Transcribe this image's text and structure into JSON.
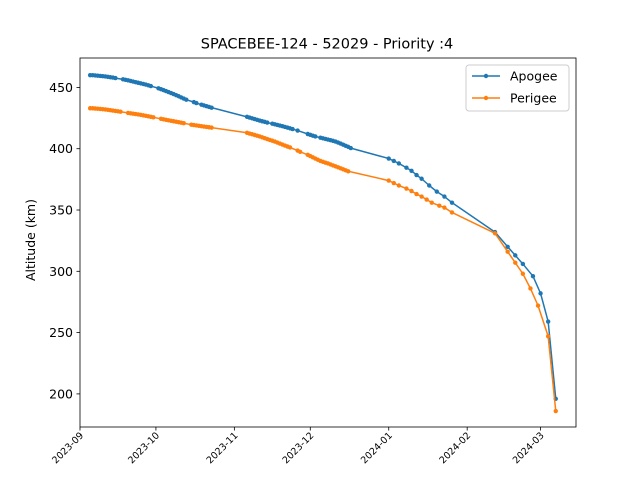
{
  "chart_data": {
    "type": "line",
    "title": "SPACEBEE-124 - 52029 - Priority :4",
    "xlabel": "",
    "ylabel": "Altitude (km)",
    "xlim": [
      "2023-09-01",
      "2024-03-15"
    ],
    "ylim": [
      173,
      474
    ],
    "x_ticks": [
      "2023-09",
      "2023-10",
      "2023-11",
      "2023-12",
      "2024-01",
      "2024-02",
      "2024-03"
    ],
    "y_ticks": [
      200,
      250,
      300,
      350,
      400,
      450
    ],
    "grid": false,
    "legend": {
      "position": "top-right"
    },
    "series": [
      {
        "name": "Apogee",
        "color": "#1f77b4",
        "marker": "circle",
        "points": [
          [
            "2023-09-05",
            460
          ],
          [
            "2023-09-06",
            460
          ],
          [
            "2023-09-07",
            459.8
          ],
          [
            "2023-09-08",
            459.6
          ],
          [
            "2023-09-09",
            459.4
          ],
          [
            "2023-09-10",
            459.2
          ],
          [
            "2023-09-11",
            459
          ],
          [
            "2023-09-12",
            458.6
          ],
          [
            "2023-09-13",
            458.3
          ],
          [
            "2023-09-14",
            458
          ],
          [
            "2023-09-15",
            457.6
          ],
          [
            "2023-09-18",
            456.6
          ],
          [
            "2023-09-19",
            456.2
          ],
          [
            "2023-09-20",
            455.8
          ],
          [
            "2023-09-21",
            455.3
          ],
          [
            "2023-09-22",
            454.8
          ],
          [
            "2023-09-23",
            454.3
          ],
          [
            "2023-09-24",
            453.8
          ],
          [
            "2023-09-25",
            453.3
          ],
          [
            "2023-09-26",
            452.8
          ],
          [
            "2023-09-27",
            452.3
          ],
          [
            "2023-09-28",
            451.7
          ],
          [
            "2023-09-29",
            451.1
          ],
          [
            "2023-10-02",
            449.3
          ],
          [
            "2023-10-03",
            448.6
          ],
          [
            "2023-10-04",
            447.8
          ],
          [
            "2023-10-05",
            447
          ],
          [
            "2023-10-06",
            446.2
          ],
          [
            "2023-10-07",
            445.4
          ],
          [
            "2023-10-08",
            444.6
          ],
          [
            "2023-10-09",
            443.7
          ],
          [
            "2023-10-10",
            442.8
          ],
          [
            "2023-10-11",
            441.8
          ],
          [
            "2023-10-12",
            440.9
          ],
          [
            "2023-10-13",
            440
          ],
          [
            "2023-10-16",
            438
          ],
          [
            "2023-10-17",
            437.2
          ],
          [
            "2023-10-19",
            435.9
          ],
          [
            "2023-10-20",
            435.3
          ],
          [
            "2023-10-21",
            434.7
          ],
          [
            "2023-10-22",
            434.1
          ],
          [
            "2023-10-23",
            433.5
          ],
          [
            "2023-11-06",
            426
          ],
          [
            "2023-11-07",
            425.4
          ],
          [
            "2023-11-08",
            424.8
          ],
          [
            "2023-11-09",
            424.2
          ],
          [
            "2023-11-10",
            423.6
          ],
          [
            "2023-11-11",
            423
          ],
          [
            "2023-11-12",
            422.4
          ],
          [
            "2023-11-13",
            421.9
          ],
          [
            "2023-11-14",
            421.3
          ],
          [
            "2023-11-16",
            420.4
          ],
          [
            "2023-11-17",
            419.9
          ],
          [
            "2023-11-18",
            419.4
          ],
          [
            "2023-11-19",
            418.9
          ],
          [
            "2023-11-20",
            418.4
          ],
          [
            "2023-11-21",
            417.8
          ],
          [
            "2023-11-22",
            417.2
          ],
          [
            "2023-11-23",
            416.6
          ],
          [
            "2023-11-24",
            416
          ],
          [
            "2023-11-26",
            414.8
          ],
          [
            "2023-11-30",
            412
          ],
          [
            "2023-12-01",
            411.3
          ],
          [
            "2023-12-02",
            410.6
          ],
          [
            "2023-12-03",
            410
          ],
          [
            "2023-12-05",
            409
          ],
          [
            "2023-12-06",
            408.5
          ],
          [
            "2023-12-07",
            408
          ],
          [
            "2023-12-08",
            407.5
          ],
          [
            "2023-12-09",
            407
          ],
          [
            "2023-12-10",
            406.4
          ],
          [
            "2023-12-11",
            405.8
          ],
          [
            "2023-12-12",
            405
          ],
          [
            "2023-12-13",
            404.2
          ],
          [
            "2023-12-14",
            403.3
          ],
          [
            "2023-12-15",
            402.4
          ],
          [
            "2023-12-16",
            401.5
          ],
          [
            "2023-12-17",
            400.5
          ],
          [
            "2024-01-01",
            392
          ],
          [
            "2024-01-03",
            390
          ],
          [
            "2024-01-05",
            388
          ],
          [
            "2024-01-08",
            384.5
          ],
          [
            "2024-01-10",
            382
          ],
          [
            "2024-01-12",
            378.5
          ],
          [
            "2024-01-14",
            375.5
          ],
          [
            "2024-01-17",
            370
          ],
          [
            "2024-01-20",
            365
          ],
          [
            "2024-01-23",
            361
          ],
          [
            "2024-01-26",
            356
          ],
          [
            "2024-02-12",
            332
          ],
          [
            "2024-02-17",
            320
          ],
          [
            "2024-02-20",
            313
          ],
          [
            "2024-02-23",
            306
          ],
          [
            "2024-02-27",
            296
          ],
          [
            "2024-03-01",
            282
          ],
          [
            "2024-03-04",
            259
          ],
          [
            "2024-03-07",
            196
          ]
        ]
      },
      {
        "name": "Perigee",
        "color": "#ff7f0e",
        "marker": "circle",
        "points": [
          [
            "2023-09-05",
            433
          ],
          [
            "2023-09-06",
            433
          ],
          [
            "2023-09-07",
            432.8
          ],
          [
            "2023-09-08",
            432.6
          ],
          [
            "2023-09-09",
            432.4
          ],
          [
            "2023-09-10",
            432.2
          ],
          [
            "2023-09-11",
            432
          ],
          [
            "2023-09-12",
            431.7
          ],
          [
            "2023-09-13",
            431.4
          ],
          [
            "2023-09-14",
            431.1
          ],
          [
            "2023-09-15",
            430.8
          ],
          [
            "2023-09-16",
            430.5
          ],
          [
            "2023-09-17",
            430.2
          ],
          [
            "2023-09-20",
            429.2
          ],
          [
            "2023-09-21",
            428.9
          ],
          [
            "2023-09-22",
            428.6
          ],
          [
            "2023-09-23",
            428.3
          ],
          [
            "2023-09-24",
            428
          ],
          [
            "2023-09-25",
            427.6
          ],
          [
            "2023-09-26",
            427.2
          ],
          [
            "2023-09-27",
            426.8
          ],
          [
            "2023-09-28",
            426.4
          ],
          [
            "2023-09-29",
            426
          ],
          [
            "2023-09-30",
            425.6
          ],
          [
            "2023-10-03",
            424.4
          ],
          [
            "2023-10-04",
            424
          ],
          [
            "2023-10-05",
            423.6
          ],
          [
            "2023-10-06",
            423.2
          ],
          [
            "2023-10-07",
            422.8
          ],
          [
            "2023-10-08",
            422.4
          ],
          [
            "2023-10-09",
            422
          ],
          [
            "2023-10-10",
            421.6
          ],
          [
            "2023-10-11",
            421.2
          ],
          [
            "2023-10-12",
            420.8
          ],
          [
            "2023-10-15",
            419.6
          ],
          [
            "2023-10-16",
            419.3
          ],
          [
            "2023-10-17",
            419
          ],
          [
            "2023-10-18",
            418.7
          ],
          [
            "2023-10-19",
            418.4
          ],
          [
            "2023-10-20",
            418.1
          ],
          [
            "2023-10-21",
            417.8
          ],
          [
            "2023-10-22",
            417.5
          ],
          [
            "2023-10-23",
            417.2
          ],
          [
            "2023-11-06",
            413
          ],
          [
            "2023-11-07",
            412.4
          ],
          [
            "2023-11-08",
            411.8
          ],
          [
            "2023-11-09",
            411.2
          ],
          [
            "2023-11-10",
            410.6
          ],
          [
            "2023-11-11",
            410
          ],
          [
            "2023-11-12",
            409.3
          ],
          [
            "2023-11-13",
            408.6
          ],
          [
            "2023-11-14",
            407.9
          ],
          [
            "2023-11-15",
            407.2
          ],
          [
            "2023-11-16",
            406.5
          ],
          [
            "2023-11-17",
            405.8
          ],
          [
            "2023-11-18",
            405
          ],
          [
            "2023-11-19",
            404.2
          ],
          [
            "2023-11-20",
            403.4
          ],
          [
            "2023-11-21",
            402.6
          ],
          [
            "2023-11-22",
            401.8
          ],
          [
            "2023-11-23",
            401
          ],
          [
            "2023-11-26",
            398.5
          ],
          [
            "2023-11-27",
            397.5
          ],
          [
            "2023-11-30",
            395
          ],
          [
            "2023-12-01",
            394
          ],
          [
            "2023-12-02",
            393
          ],
          [
            "2023-12-03",
            392
          ],
          [
            "2023-12-04",
            391
          ],
          [
            "2023-12-05",
            390
          ],
          [
            "2023-12-06",
            389.3
          ],
          [
            "2023-12-07",
            388.6
          ],
          [
            "2023-12-08",
            388
          ],
          [
            "2023-12-09",
            387.2
          ],
          [
            "2023-12-10",
            386.4
          ],
          [
            "2023-12-11",
            385.6
          ],
          [
            "2023-12-12",
            384.8
          ],
          [
            "2023-12-13",
            384
          ],
          [
            "2023-12-14",
            383.2
          ],
          [
            "2023-12-15",
            382.4
          ],
          [
            "2023-12-16",
            381.6
          ],
          [
            "2024-01-01",
            374
          ],
          [
            "2024-01-03",
            372
          ],
          [
            "2024-01-05",
            370
          ],
          [
            "2024-01-08",
            367.5
          ],
          [
            "2024-01-10",
            365.5
          ],
          [
            "2024-01-12",
            363
          ],
          [
            "2024-01-14",
            361
          ],
          [
            "2024-01-16",
            358.5
          ],
          [
            "2024-01-18",
            356
          ],
          [
            "2024-01-21",
            353.5
          ],
          [
            "2024-01-23",
            352
          ],
          [
            "2024-01-26",
            348
          ],
          [
            "2024-02-12",
            331
          ],
          [
            "2024-02-17",
            316
          ],
          [
            "2024-02-20",
            307
          ],
          [
            "2024-02-23",
            298
          ],
          [
            "2024-02-26",
            286
          ],
          [
            "2024-02-29",
            272
          ],
          [
            "2024-03-04",
            247
          ],
          [
            "2024-03-07",
            186
          ]
        ]
      }
    ]
  }
}
